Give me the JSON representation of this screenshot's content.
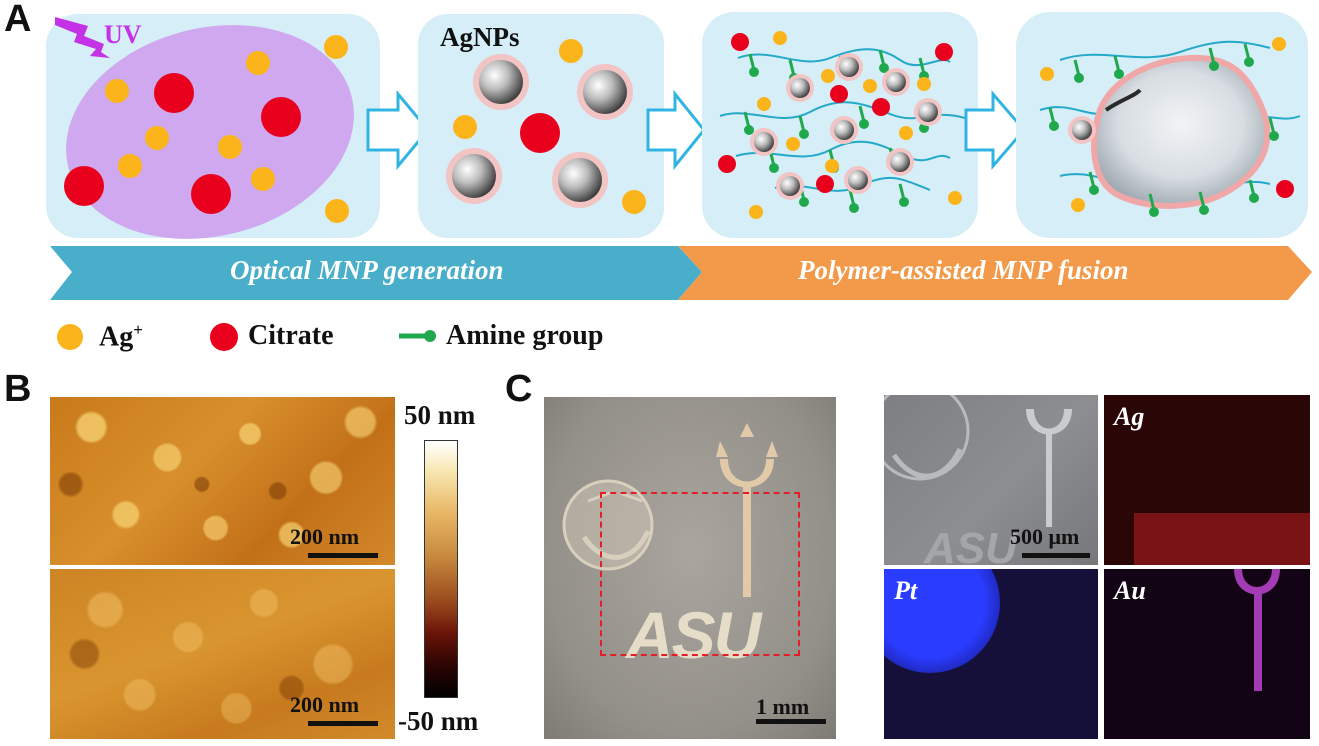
{
  "panels": {
    "a": "A",
    "b": "B",
    "c": "C"
  },
  "schematic": {
    "uv_label": "UV",
    "agnps_label": "AgNPs",
    "stage1_banner": "Optical MNP generation",
    "stage2_banner": "Polymer-assisted MNP fusion",
    "colors": {
      "box_bg": "#d6eef7",
      "solution": "#cfa8ef",
      "ag_ion": "#fbb41a",
      "citrate": "#e8001c",
      "amine": "#1fa84c",
      "polymer": "#24a9c8",
      "banner1": "#49aec9",
      "banner2": "#f39a4a",
      "arrow": "#2fb4e4"
    }
  },
  "legend": {
    "ag_label": "Ag",
    "ag_sup": "+",
    "citrate_label": "Citrate",
    "amine_label": "Amine group"
  },
  "afm": {
    "scale_top": "200 nm",
    "scale_bottom": "200 nm",
    "colorbar_max": "50 nm",
    "colorbar_min": "-50 nm"
  },
  "photo": {
    "scale": "1 mm",
    "logo_text": "ASU"
  },
  "eds": {
    "sem_scale": "500 μm",
    "ag_label": "Ag",
    "pt_label": "Pt",
    "au_label": "Au"
  }
}
